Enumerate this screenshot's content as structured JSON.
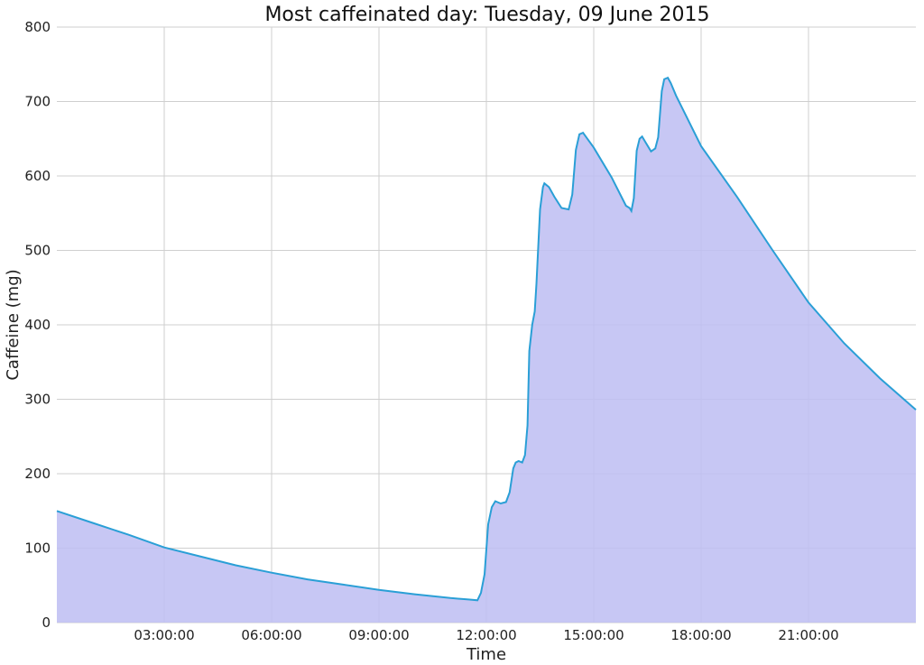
{
  "chart_data": {
    "type": "area",
    "title": "Most caffeinated day: Tuesday, 09 June 2015",
    "xlabel": "Time",
    "ylabel": "Caffeine (mg)",
    "x_unit": "hours",
    "xlim": [
      0,
      24
    ],
    "ylim": [
      0,
      800
    ],
    "x_ticks": [
      {
        "value": 3,
        "label": "03:00:00"
      },
      {
        "value": 6,
        "label": "06:00:00"
      },
      {
        "value": 9,
        "label": "09:00:00"
      },
      {
        "value": 12,
        "label": "12:00:00"
      },
      {
        "value": 15,
        "label": "15:00:00"
      },
      {
        "value": 18,
        "label": "18:00:00"
      },
      {
        "value": 21,
        "label": "21:00:00"
      }
    ],
    "y_ticks": [
      0,
      100,
      200,
      300,
      400,
      500,
      600,
      700,
      800
    ],
    "grid": true,
    "line_color": "#2a9fd6",
    "fill_color": "#bfbff2",
    "series": [
      {
        "x": [
          0,
          1,
          2,
          3,
          4,
          5,
          6,
          7,
          8,
          9,
          10,
          11,
          11.5,
          11.75,
          11.85,
          11.95,
          12.05,
          12.15,
          12.25,
          12.4,
          12.55,
          12.65,
          12.75,
          12.82,
          12.9,
          13.0,
          13.08,
          13.15,
          13.2,
          13.28,
          13.35,
          13.4,
          13.5,
          13.58,
          13.62,
          13.75,
          13.9,
          14.1,
          14.3,
          14.4,
          14.5,
          14.6,
          14.7,
          15.0,
          15.5,
          15.9,
          16.0,
          16.05,
          16.12,
          16.2,
          16.28,
          16.35,
          16.45,
          16.6,
          16.72,
          16.8,
          16.9,
          16.97,
          17.07,
          17.15,
          17.3,
          18,
          19,
          20,
          21,
          22,
          23,
          24
        ],
        "y": [
          150,
          134,
          118,
          101,
          89,
          77,
          67,
          58,
          51,
          44,
          38,
          33,
          31,
          30,
          40,
          65,
          132,
          155,
          163,
          160,
          162,
          175,
          207,
          215,
          217,
          215,
          225,
          265,
          365,
          400,
          418,
          455,
          555,
          585,
          590,
          585,
          572,
          557,
          555,
          575,
          635,
          656,
          658,
          638,
          598,
          560,
          557,
          553,
          570,
          634,
          650,
          653,
          645,
          633,
          637,
          652,
          714,
          730,
          732,
          725,
          708,
          640,
          572,
          500,
          430,
          375,
          328,
          286
        ]
      }
    ]
  }
}
